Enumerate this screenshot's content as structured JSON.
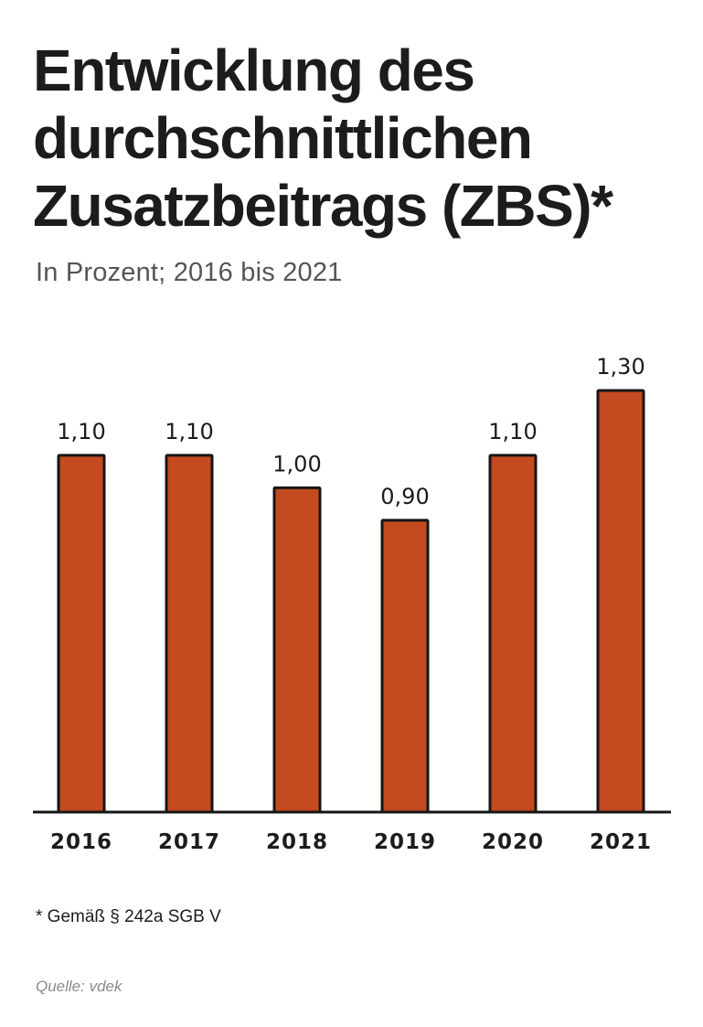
{
  "header": {
    "title": "Entwicklung des durchschnittlichen Zusatzbeitrags (ZBS)*",
    "subtitle": "In Prozent; 2016 bis 2021"
  },
  "footer": {
    "footnote": "* Gemäß § 242a SGB V",
    "source": "Quelle: vdek"
  },
  "colors": {
    "bar": "#c44a1f",
    "outline": "#161616"
  },
  "chart_data": {
    "type": "bar",
    "categories": [
      "2016",
      "2017",
      "2018",
      "2019",
      "2020",
      "2021"
    ],
    "values": [
      1.1,
      1.1,
      1.0,
      0.9,
      1.1,
      1.3
    ],
    "value_labels": [
      "1,10",
      "1,10",
      "1,00",
      "0,90",
      "1,10",
      "1,30"
    ],
    "ylim": [
      0,
      1.3
    ],
    "grid": false,
    "legend": "none"
  }
}
